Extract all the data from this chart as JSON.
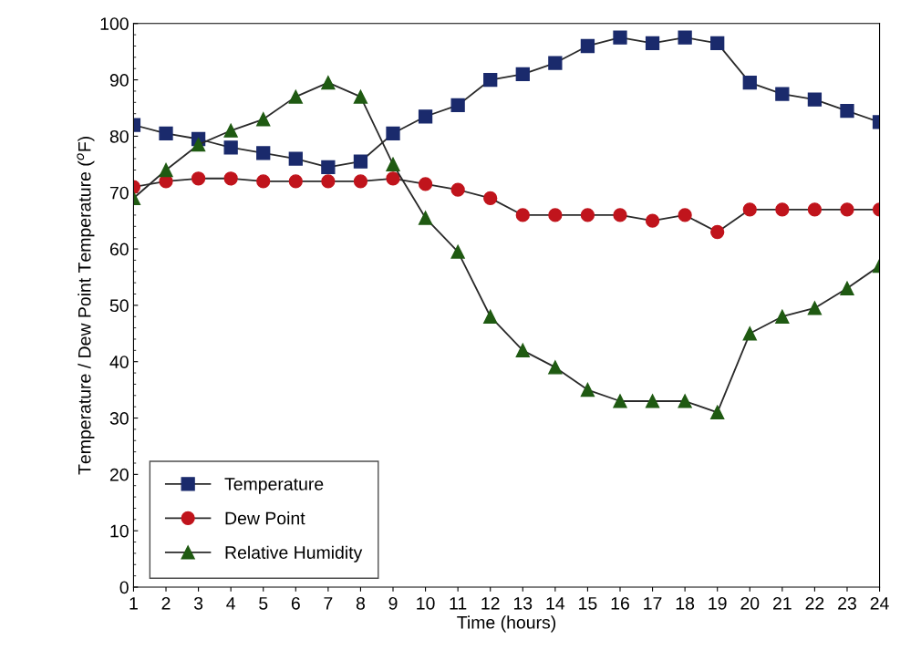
{
  "chart_data": {
    "type": "line",
    "xlabel": "Time (hours)",
    "ylabel": "Temperature / Dew Point Temperature ($^{o}$F)",
    "x": [
      1,
      2,
      3,
      4,
      5,
      6,
      7,
      8,
      9,
      10,
      11,
      12,
      13,
      14,
      15,
      16,
      17,
      18,
      19,
      20,
      21,
      22,
      23,
      24
    ],
    "xlim": [
      1,
      24
    ],
    "xticks": [
      1,
      2,
      3,
      4,
      5,
      6,
      7,
      8,
      9,
      10,
      11,
      12,
      13,
      14,
      15,
      16,
      17,
      18,
      19,
      20,
      21,
      22,
      23,
      24
    ],
    "ylim": [
      0,
      100
    ],
    "yticks": [
      0,
      10,
      20,
      30,
      40,
      50,
      60,
      70,
      80,
      90,
      100
    ],
    "grid": false,
    "legend": "bottom left",
    "series": [
      {
        "name": "Temperature",
        "color": "#1a2a6c",
        "marker": "square",
        "values": [
          82,
          80.5,
          79.5,
          78,
          77,
          76,
          74.5,
          75.5,
          80.5,
          83.5,
          85.5,
          90,
          91,
          93,
          96,
          97.5,
          96.5,
          97.5,
          96.5,
          89.5,
          87.5,
          86.5,
          84.5,
          82.5
        ]
      },
      {
        "name": "Dew Point",
        "color": "#c0141c",
        "marker": "circle",
        "values": [
          71,
          72,
          72.5,
          72.5,
          72,
          72,
          72,
          72,
          72.5,
          71.5,
          70.5,
          69,
          66,
          66,
          66,
          66,
          65,
          66,
          63,
          67,
          67,
          67,
          67,
          67
        ]
      },
      {
        "name": "Relative Humidity",
        "color": "#1f5a12",
        "marker": "triangle",
        "values": [
          69,
          74,
          78.5,
          81,
          83,
          87,
          89.5,
          87,
          75,
          65.5,
          59.5,
          48,
          42,
          39,
          35,
          33,
          33,
          33,
          31,
          45,
          48,
          49.5,
          53,
          57
        ]
      }
    ]
  }
}
